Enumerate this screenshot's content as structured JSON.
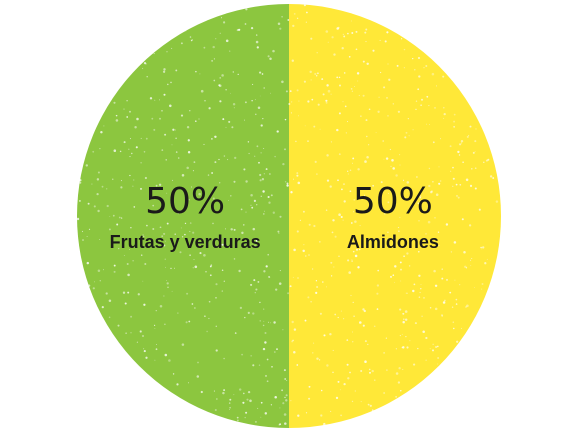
{
  "chart_data": {
    "type": "pie",
    "slices": [
      {
        "label": "Frutas y verduras",
        "value": 50,
        "value_label": "50%",
        "color": "#8cc63f"
      },
      {
        "label": "Almidones",
        "value": 50,
        "value_label": "50%",
        "color": "#ffe838"
      }
    ],
    "title": "",
    "legend": "none",
    "texture": "speckled"
  }
}
